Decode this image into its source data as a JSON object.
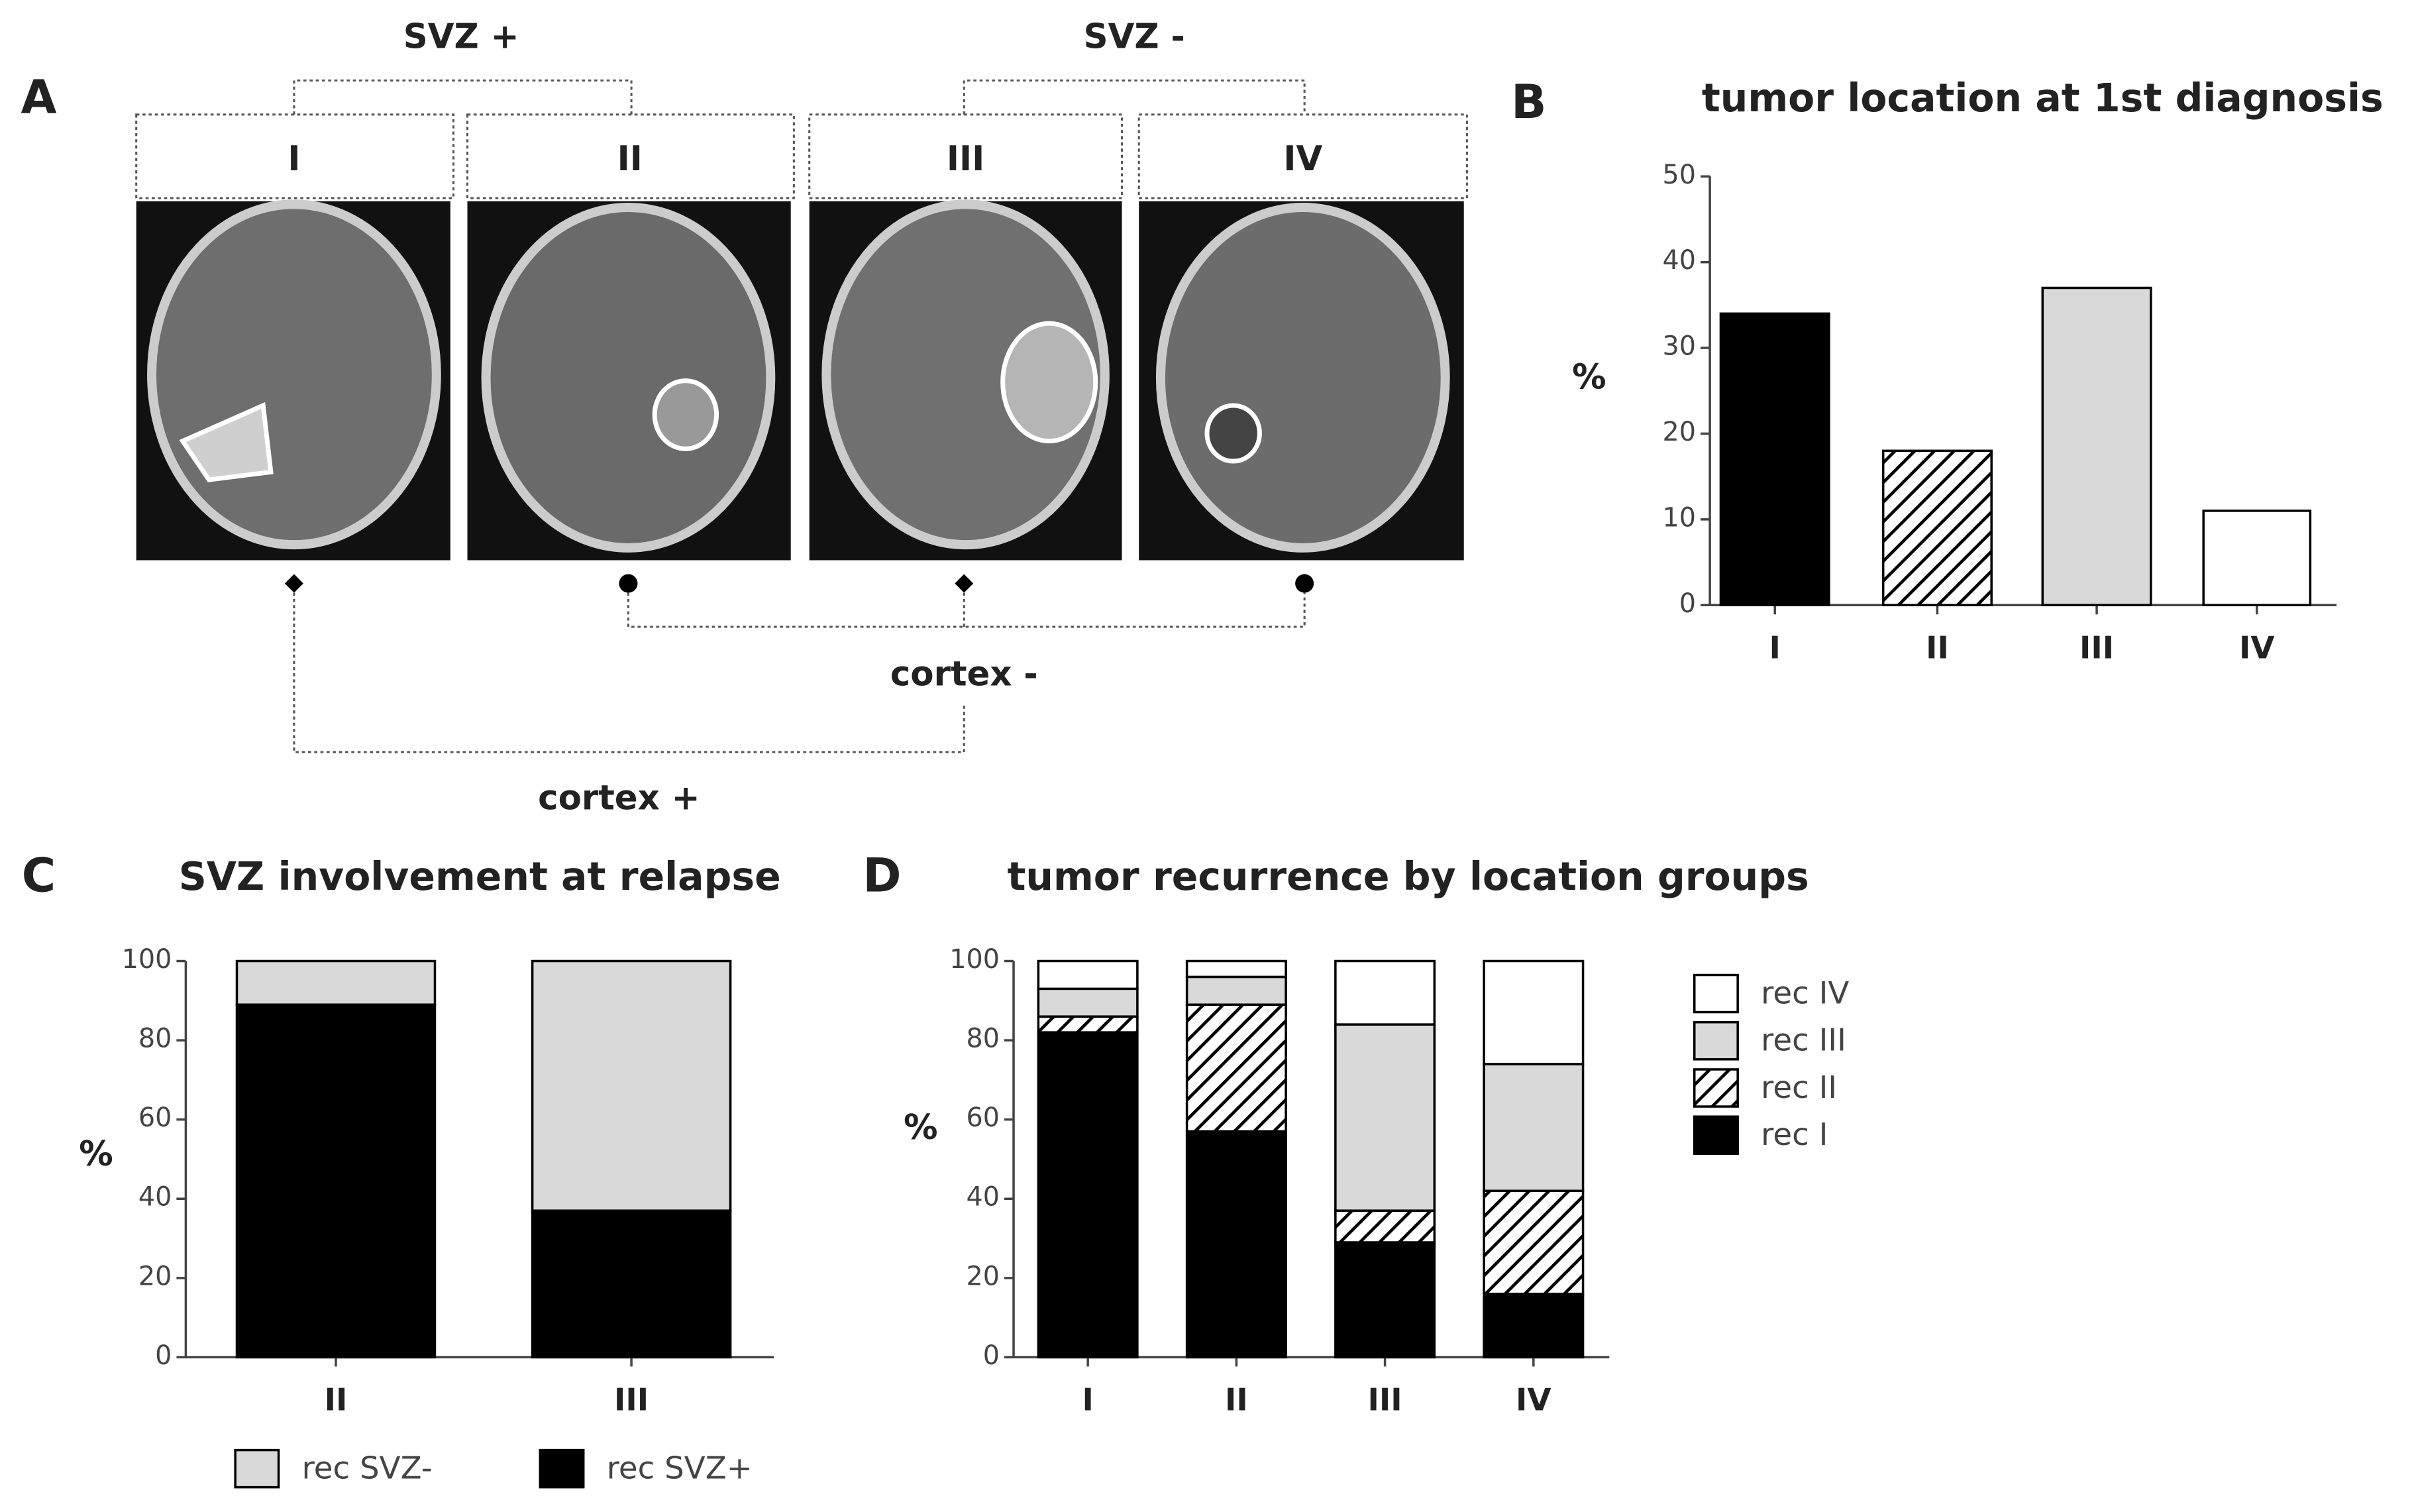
{
  "panel_labels": [
    "A",
    "B",
    "C",
    "D"
  ],
  "diagram": {
    "groups": [
      "SVZ +",
      "SVZ -"
    ],
    "locations": [
      "I",
      "II",
      "III",
      "IV"
    ],
    "cortex": [
      "cortex -",
      "cortex +"
    ]
  },
  "chart_data": [
    {
      "type": "bar",
      "title": "tumor location at 1st diagnosis",
      "ylabel": "%",
      "categories": [
        "I",
        "II",
        "III",
        "IV"
      ],
      "values": [
        34,
        18,
        37,
        11
      ],
      "colors": [
        "#000000",
        "#ffffff",
        "#d9d9d9",
        "#ffffff"
      ],
      "hatched": [
        false,
        true,
        false,
        false
      ],
      "ylim": [
        0,
        50
      ],
      "yticks": [
        0,
        10,
        20,
        30,
        40,
        50
      ]
    },
    {
      "type": "stacked_bar",
      "title": "SVZ involvement at relapse",
      "ylabel": "%",
      "categories": [
        "II",
        "III"
      ],
      "series": [
        {
          "name": "rec SVZ+",
          "color": "#000000",
          "values": [
            89,
            37
          ]
        },
        {
          "name": "rec SVZ-",
          "color": "#d9d9d9",
          "values": [
            11,
            63
          ]
        }
      ],
      "ylim": [
        0,
        100
      ],
      "yticks": [
        0,
        20,
        40,
        60,
        80,
        100
      ],
      "legend": "bottom"
    },
    {
      "type": "stacked_bar",
      "title": "tumor recurrence by location groups",
      "ylabel": "%",
      "categories": [
        "I",
        "II",
        "III",
        "IV"
      ],
      "series": [
        {
          "name": "rec I",
          "color": "#000000",
          "values": [
            82,
            57,
            29,
            16
          ]
        },
        {
          "name": "rec II",
          "color": "#ffffff",
          "hatched": true,
          "values": [
            4,
            32,
            8,
            26
          ]
        },
        {
          "name": "rec III",
          "color": "#d9d9d9",
          "values": [
            7,
            7,
            47,
            32
          ]
        },
        {
          "name": "rec IV",
          "color": "#ffffff",
          "values": [
            7,
            4,
            16,
            26
          ]
        }
      ],
      "ylim": [
        0,
        100
      ],
      "yticks": [
        0,
        20,
        40,
        60,
        80,
        100
      ],
      "legend": "right"
    }
  ]
}
